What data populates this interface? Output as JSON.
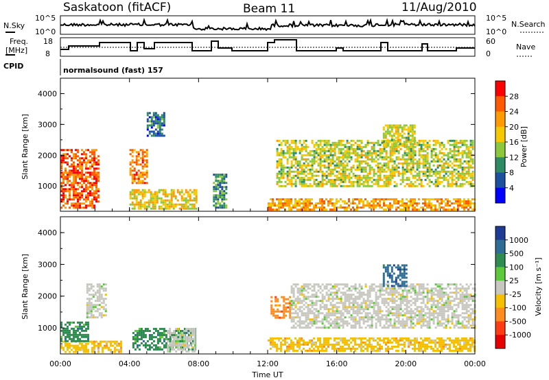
{
  "header": {
    "station": "Saskatoon (fitACF)",
    "beam": "Beam 11",
    "date": "11/Aug/2010"
  },
  "top_panels": {
    "nsky_label": "N.Sky",
    "nsky_ticks": [
      "10^5",
      "10^0"
    ],
    "nsearch_label": "N.Search",
    "nsearch_ticks": [
      "10^5",
      "10^0"
    ],
    "freq_label_1": "Freq.",
    "freq_label_2": "[MHz]",
    "freq_ticks": [
      "18",
      "8"
    ],
    "nave_label": "Nave",
    "nave_ticks": [
      "60",
      "0"
    ],
    "cpid_label": "CPID",
    "cpid_value": "normalsound (fast) 157"
  },
  "axes": {
    "ylabel": "Slant Range [km]",
    "yticks": [
      "4000",
      "3000",
      "2000",
      "1000"
    ],
    "xticks": [
      "00:00",
      "04:00",
      "08:00",
      "12:00",
      "16:00",
      "20:00",
      "00:00"
    ],
    "xlabel": "Time UT"
  },
  "power_scale": {
    "label": "Power [dB]",
    "ticks": [
      "28",
      "24",
      "20",
      "16",
      "12",
      "8",
      "4"
    ],
    "colors": [
      "#ff0000",
      "#ff5a00",
      "#ff9a00",
      "#f5c800",
      "#8cc83c",
      "#2e8c64",
      "#1e50a0",
      "#0000ff"
    ]
  },
  "velocity_scale": {
    "label": "Velocity [m s⁻¹]",
    "ticks": [
      "1000",
      "500",
      "100",
      "25",
      "-25",
      "-100",
      "-500",
      "-1000"
    ],
    "colors": [
      "#1e3c96",
      "#2e6e96",
      "#2e8c50",
      "#5cc83c",
      "#c8c8c0",
      "#f5c000",
      "#ff8c1e",
      "#ff3c14",
      "#e60000"
    ]
  },
  "chart_data": [
    {
      "type": "heatmap",
      "title": "Power",
      "xlabel": "Time UT",
      "ylabel": "Slant Range [km]",
      "xlim": [
        "00:00",
        "24:00"
      ],
      "ylim": [
        180,
        4500
      ],
      "colorbar": {
        "label": "Power [dB]",
        "range": [
          0,
          32
        ]
      },
      "series": [
        {
          "x_range": [
            "00:00",
            "02:10"
          ],
          "y_range": [
            300,
            2200
          ],
          "value": 24
        },
        {
          "x_range": [
            "04:00",
            "05:00"
          ],
          "y_range": [
            1100,
            2200
          ],
          "value": 22
        },
        {
          "x_range": [
            "04:00",
            "07:50"
          ],
          "y_range": [
            250,
            900
          ],
          "value": 16
        },
        {
          "x_range": [
            "05:00",
            "06:00"
          ],
          "y_range": [
            2600,
            3400
          ],
          "value": 6
        },
        {
          "x_range": [
            "08:50",
            "09:40"
          ],
          "y_range": [
            300,
            1400
          ],
          "value": 8
        },
        {
          "x_range": [
            "12:00",
            "24:00"
          ],
          "y_range": [
            250,
            600
          ],
          "value": 20
        },
        {
          "x_range": [
            "12:30",
            "23:50"
          ],
          "y_range": [
            1000,
            2500
          ],
          "value": 14
        },
        {
          "x_range": [
            "18:40",
            "20:30"
          ],
          "y_range": [
            2300,
            3000
          ],
          "value": 14
        }
      ]
    },
    {
      "type": "heatmap",
      "title": "Velocity",
      "xlabel": "Time UT",
      "ylabel": "Slant Range [km]",
      "xlim": [
        "00:00",
        "24:00"
      ],
      "ylim": [
        180,
        4500
      ],
      "colorbar": {
        "label": "Velocity [m s⁻¹]",
        "range": [
          -1000,
          1000
        ]
      },
      "series": [
        {
          "x_range": [
            "00:00",
            "03:30"
          ],
          "y_range": [
            250,
            600
          ],
          "value": -100
        },
        {
          "x_range": [
            "00:00",
            "01:40"
          ],
          "y_range": [
            600,
            1200
          ],
          "value": 100
        },
        {
          "x_range": [
            "01:30",
            "02:40"
          ],
          "y_range": [
            1300,
            2400
          ],
          "value": 0
        },
        {
          "x_range": [
            "04:10",
            "07:50"
          ],
          "y_range": [
            300,
            1000
          ],
          "value": 100
        },
        {
          "x_range": [
            "06:10",
            "07:50"
          ],
          "y_range": [
            250,
            1000
          ],
          "value": 0
        },
        {
          "x_range": [
            "12:00",
            "24:00"
          ],
          "y_range": [
            250,
            700
          ],
          "value": -100
        },
        {
          "x_range": [
            "12:10",
            "13:20"
          ],
          "y_range": [
            1300,
            2000
          ],
          "value": -500
        },
        {
          "x_range": [
            "13:20",
            "24:00"
          ],
          "y_range": [
            1000,
            2400
          ],
          "value": 0
        },
        {
          "x_range": [
            "18:40",
            "20:00"
          ],
          "y_range": [
            2300,
            3000
          ],
          "value": 500
        }
      ]
    }
  ]
}
